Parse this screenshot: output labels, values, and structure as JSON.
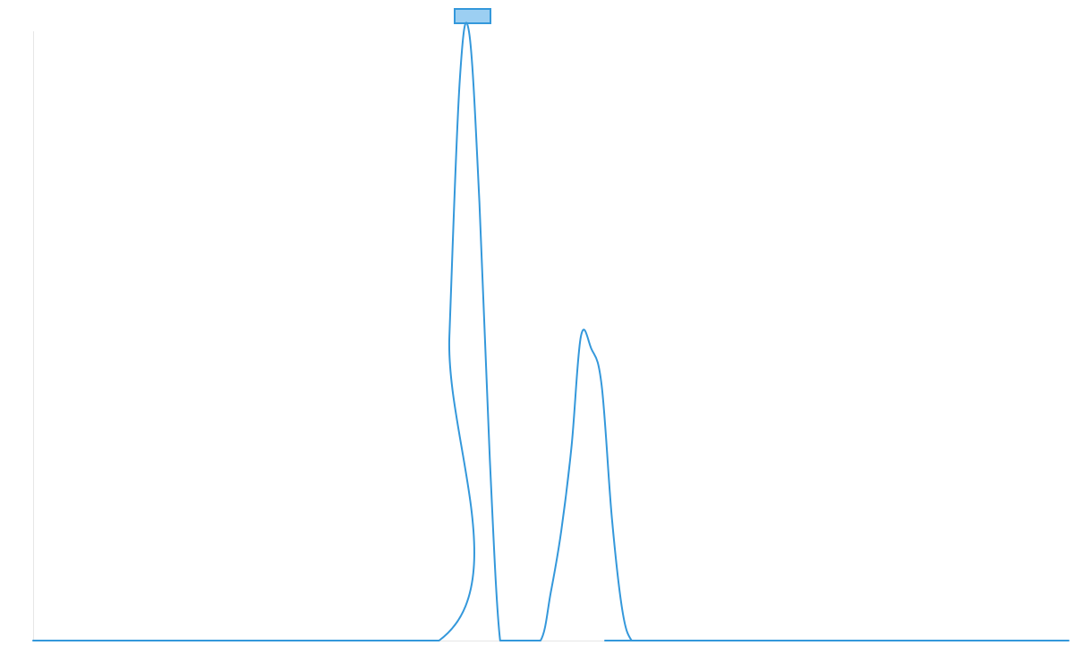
{
  "chart_data": {
    "type": "line",
    "x": [
      0,
      0.392,
      0.402,
      0.412,
      0.421,
      0.431,
      0.441,
      0.451,
      0.461,
      0.471,
      0.49,
      0.5,
      0.51,
      0.52,
      0.529,
      0.539,
      0.549,
      0.559,
      0.569,
      0.578,
      0.588,
      1
    ],
    "series": [
      {
        "values": [
          0,
          0,
          0.5,
          0.92,
          1.0,
          0.72,
          0.3,
          0,
          0,
          0,
          0,
          0.08,
          0.18,
          0.32,
          0.5,
          0.48,
          0.42,
          0.2,
          0.05,
          0,
          0,
          0
        ],
        "color": "#3498db"
      }
    ],
    "xlim": [
      0,
      1
    ],
    "ylim": [
      0,
      1
    ],
    "grid": false,
    "legend": "top-center"
  }
}
